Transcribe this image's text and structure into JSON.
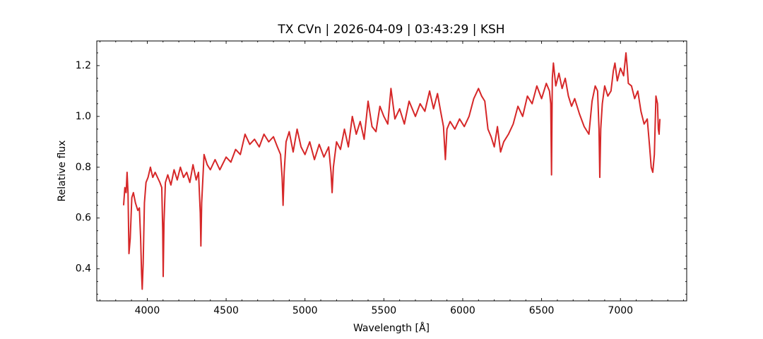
{
  "chart_data": {
    "type": "line",
    "title": "TX CVn | 2026-04-09 | 03:43:29 | KSH",
    "xlabel": "Wavelength [Å]",
    "ylabel": "Relative flux",
    "xlim": [
      3680,
      7420
    ],
    "ylim": [
      0.274,
      1.297
    ],
    "xticks": [
      4000,
      4500,
      5000,
      5500,
      6000,
      6500,
      7000
    ],
    "yticks": [
      0.4,
      0.6,
      0.8,
      1.0,
      1.2
    ],
    "xminorticks": [
      3700,
      3800,
      3900,
      4100,
      4200,
      4300,
      4400,
      4600,
      4700,
      4800,
      4900,
      5100,
      5200,
      5300,
      5400,
      5600,
      5700,
      5800,
      5900,
      6100,
      6200,
      6300,
      6400,
      6600,
      6700,
      6800,
      6900,
      7100,
      7200,
      7300,
      7400
    ],
    "yminorticks": [
      0.3,
      0.35,
      0.45,
      0.5,
      0.55,
      0.65,
      0.7,
      0.75,
      0.85,
      0.9,
      0.95,
      1.05,
      1.1,
      1.15,
      1.25
    ],
    "series": [
      {
        "name": "TX CVn",
        "color": "#d62728",
        "x": [
          3850,
          3858,
          3866,
          3872,
          3878,
          3884,
          3892,
          3902,
          3912,
          3925,
          3940,
          3950,
          3958,
          3964,
          3968,
          3974,
          3982,
          3992,
          4005,
          4020,
          4035,
          4050,
          4065,
          4080,
          4092,
          4098,
          4101,
          4106,
          4115,
          4130,
          4150,
          4170,
          4190,
          4210,
          4230,
          4250,
          4270,
          4290,
          4310,
          4325,
          4336,
          4340,
          4345,
          4360,
          4380,
          4400,
          4430,
          4460,
          4500,
          4530,
          4560,
          4590,
          4620,
          4650,
          4680,
          4710,
          4740,
          4770,
          4800,
          4825,
          4845,
          4855,
          4861,
          4868,
          4880,
          4900,
          4925,
          4950,
          4975,
          5000,
          5030,
          5060,
          5090,
          5120,
          5150,
          5165,
          5172,
          5180,
          5200,
          5225,
          5250,
          5275,
          5300,
          5325,
          5350,
          5375,
          5400,
          5425,
          5450,
          5475,
          5500,
          5525,
          5545,
          5570,
          5600,
          5630,
          5660,
          5700,
          5730,
          5760,
          5790,
          5815,
          5840,
          5860,
          5878,
          5890,
          5900,
          5920,
          5950,
          5980,
          6010,
          6040,
          6070,
          6100,
          6120,
          6140,
          6160,
          6180,
          6200,
          6220,
          6240,
          6260,
          6290,
          6320,
          6350,
          6380,
          6410,
          6440,
          6470,
          6500,
          6530,
          6550,
          6558,
          6563,
          6568,
          6575,
          6590,
          6610,
          6630,
          6650,
          6670,
          6690,
          6710,
          6740,
          6770,
          6800,
          6820,
          6840,
          6855,
          6864,
          6869,
          6875,
          6885,
          6900,
          6920,
          6940,
          6955,
          6965,
          6980,
          7000,
          7020,
          7035,
          7042,
          7050,
          7070,
          7090,
          7110,
          7130,
          7150,
          7170,
          7185,
          7195,
          7205,
          7215,
          7225,
          7235,
          7240,
          7245,
          7250
        ],
        "values": [
          0.65,
          0.72,
          0.7,
          0.78,
          0.7,
          0.46,
          0.52,
          0.68,
          0.7,
          0.66,
          0.63,
          0.64,
          0.52,
          0.38,
          0.32,
          0.42,
          0.66,
          0.74,
          0.76,
          0.8,
          0.76,
          0.78,
          0.76,
          0.74,
          0.72,
          0.55,
          0.37,
          0.58,
          0.74,
          0.77,
          0.73,
          0.79,
          0.75,
          0.8,
          0.76,
          0.78,
          0.74,
          0.81,
          0.75,
          0.78,
          0.62,
          0.49,
          0.66,
          0.85,
          0.81,
          0.79,
          0.83,
          0.79,
          0.84,
          0.82,
          0.87,
          0.85,
          0.93,
          0.89,
          0.91,
          0.88,
          0.93,
          0.9,
          0.92,
          0.88,
          0.85,
          0.76,
          0.65,
          0.78,
          0.9,
          0.94,
          0.86,
          0.95,
          0.88,
          0.85,
          0.9,
          0.83,
          0.89,
          0.84,
          0.88,
          0.78,
          0.7,
          0.8,
          0.9,
          0.87,
          0.95,
          0.88,
          1.0,
          0.93,
          0.98,
          0.91,
          1.06,
          0.96,
          0.94,
          1.04,
          1.0,
          0.97,
          1.11,
          0.99,
          1.03,
          0.97,
          1.06,
          1.0,
          1.05,
          1.02,
          1.1,
          1.03,
          1.09,
          1.02,
          0.96,
          0.83,
          0.95,
          0.98,
          0.95,
          0.99,
          0.96,
          1.0,
          1.07,
          1.11,
          1.08,
          1.06,
          0.95,
          0.92,
          0.88,
          0.96,
          0.86,
          0.9,
          0.93,
          0.97,
          1.04,
          1.0,
          1.08,
          1.05,
          1.12,
          1.07,
          1.13,
          1.1,
          1.05,
          0.77,
          1.15,
          1.21,
          1.12,
          1.17,
          1.11,
          1.15,
          1.08,
          1.04,
          1.07,
          1.01,
          0.96,
          0.93,
          1.06,
          1.12,
          1.1,
          0.95,
          0.76,
          0.95,
          1.05,
          1.12,
          1.08,
          1.1,
          1.18,
          1.21,
          1.14,
          1.19,
          1.16,
          1.25,
          1.2,
          1.13,
          1.12,
          1.07,
          1.1,
          1.02,
          0.97,
          0.99,
          0.88,
          0.8,
          0.78,
          0.85,
          1.08,
          1.05,
          0.95,
          0.93,
          0.99
        ]
      }
    ]
  }
}
